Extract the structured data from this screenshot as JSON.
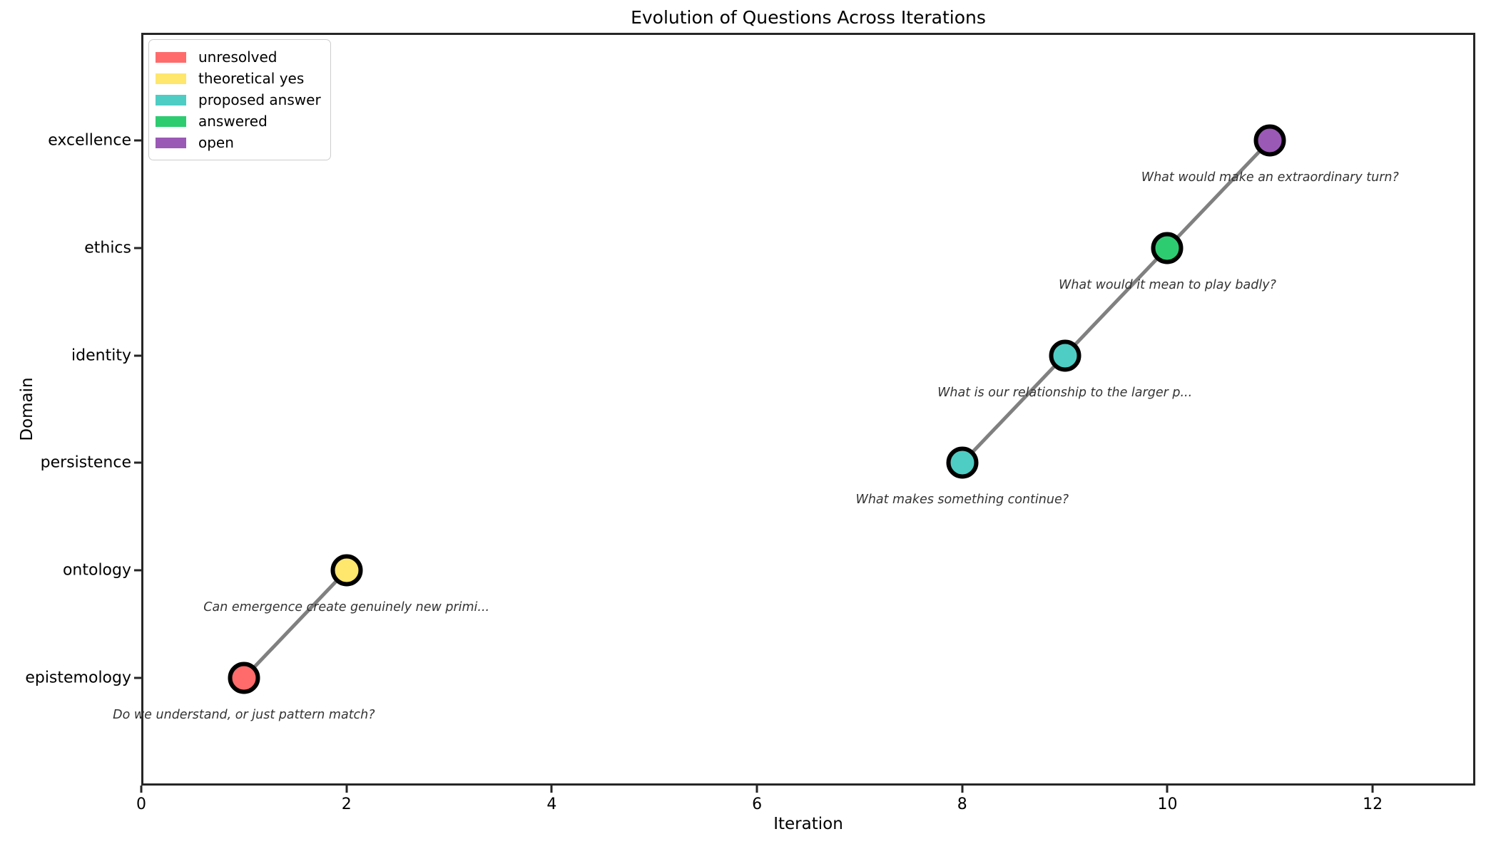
{
  "figure": {
    "background": "#ffffff",
    "spine_color": "#262626",
    "line_color": "#808080",
    "marker_edge_color": "#000000",
    "annotation_color": "#333333"
  },
  "chart_data": {
    "type": "scatter",
    "title": "Evolution of Questions Across Iterations",
    "xlabel": "Iteration",
    "ylabel": "Domain",
    "xlim": [
      0,
      13
    ],
    "ylim": [
      -1,
      6
    ],
    "x_ticks": [
      0,
      2,
      4,
      6,
      8,
      10,
      12
    ],
    "y_categories": [
      "epistemology",
      "ontology",
      "persistence",
      "identity",
      "ethics",
      "excellence"
    ],
    "grid": false,
    "legend": {
      "position": "upper left",
      "entries": [
        {
          "label": "unresolved",
          "color": "#FF6B6B"
        },
        {
          "label": "theoretical yes",
          "color": "#FFE66D"
        },
        {
          "label": "proposed answer",
          "color": "#4ECDC4"
        },
        {
          "label": "answered",
          "color": "#2ECC71"
        },
        {
          "label": "open",
          "color": "#9B59B6"
        }
      ]
    },
    "points": [
      {
        "x": 1,
        "domain": "epistemology",
        "status": "unresolved",
        "color": "#FF6B6B",
        "annotation": "Do we understand, or just pattern match?"
      },
      {
        "x": 2,
        "domain": "ontology",
        "status": "theoretical yes",
        "color": "#FFE66D",
        "annotation": "Can emergence create genuinely new primi..."
      },
      {
        "x": 8,
        "domain": "persistence",
        "status": "proposed answer",
        "color": "#4ECDC4",
        "annotation": "What makes something continue?"
      },
      {
        "x": 9,
        "domain": "identity",
        "status": "proposed answer",
        "color": "#4ECDC4",
        "annotation": "What is our relationship to the larger p..."
      },
      {
        "x": 10,
        "domain": "ethics",
        "status": "answered",
        "color": "#2ECC71",
        "annotation": "What would it mean to play badly?"
      },
      {
        "x": 11,
        "domain": "excellence",
        "status": "open",
        "color": "#9B59B6",
        "annotation": "What would make an extraordinary turn?"
      }
    ],
    "line_segments": [
      [
        0,
        1
      ],
      [
        2,
        3,
        4,
        5
      ]
    ]
  }
}
